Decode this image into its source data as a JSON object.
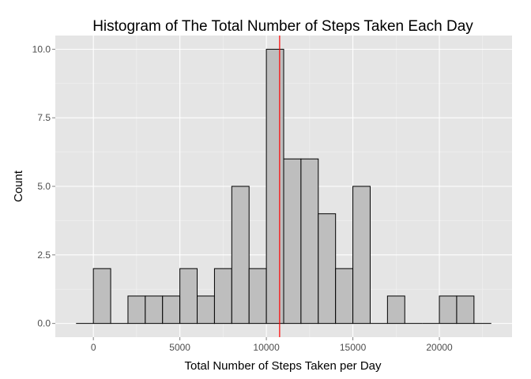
{
  "chart_data": {
    "type": "bar",
    "subtype": "histogram",
    "title": "Histogram of The Total Number of Steps Taken Each Day",
    "xlabel": "Total Number of Steps Taken per Day",
    "ylabel": "Count",
    "xlim": [
      -1000,
      23000
    ],
    "ylim": [
      0,
      10
    ],
    "binwidth": 1000,
    "bins": [
      {
        "x": -500,
        "count": 0
      },
      {
        "x": 500,
        "count": 2
      },
      {
        "x": 1500,
        "count": 0
      },
      {
        "x": 2500,
        "count": 1
      },
      {
        "x": 3500,
        "count": 1
      },
      {
        "x": 4500,
        "count": 1
      },
      {
        "x": 5500,
        "count": 2
      },
      {
        "x": 6500,
        "count": 1
      },
      {
        "x": 7500,
        "count": 2
      },
      {
        "x": 8500,
        "count": 5
      },
      {
        "x": 9500,
        "count": 2
      },
      {
        "x": 10500,
        "count": 10
      },
      {
        "x": 11500,
        "count": 6
      },
      {
        "x": 12500,
        "count": 6
      },
      {
        "x": 13500,
        "count": 4
      },
      {
        "x": 14500,
        "count": 2
      },
      {
        "x": 15500,
        "count": 5
      },
      {
        "x": 16500,
        "count": 0
      },
      {
        "x": 17500,
        "count": 1
      },
      {
        "x": 18500,
        "count": 0
      },
      {
        "x": 19500,
        "count": 0
      },
      {
        "x": 20500,
        "count": 1
      },
      {
        "x": 21500,
        "count": 1
      },
      {
        "x": 22500,
        "count": 0
      }
    ],
    "reference_line": {
      "x": 10766,
      "color": "#ff0000"
    },
    "x_ticks": [
      0,
      5000,
      10000,
      15000,
      20000
    ],
    "y_ticks": [
      0,
      2.5,
      5,
      7.5,
      10
    ],
    "x_tick_labels": [
      "0",
      "5000",
      "10000",
      "15000",
      "20000"
    ],
    "y_tick_labels": [
      "0.0",
      "2.5",
      "5.0",
      "7.5",
      "10.0"
    ],
    "grid": true,
    "legend": "none",
    "colors": {
      "panel_bg": "#e5e5e5",
      "grid_major": "#ffffff",
      "grid_minor": "#f2f2f2",
      "bar_fill": "#bebebe",
      "bar_stroke": "#000000"
    }
  }
}
